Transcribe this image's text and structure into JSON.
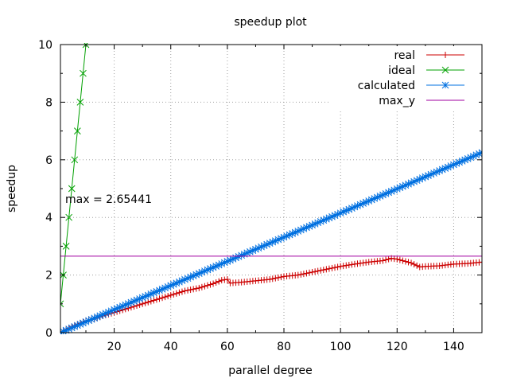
{
  "chart_data": {
    "type": "line",
    "title": "speedup plot",
    "xlabel": "parallel degree",
    "ylabel": "speedup",
    "xlim": [
      1,
      150
    ],
    "ylim": [
      0,
      10
    ],
    "xticks": [
      20,
      40,
      60,
      80,
      100,
      120,
      140
    ],
    "yticks": [
      0,
      2,
      4,
      6,
      8,
      10
    ],
    "grid": true,
    "legend_position": "top-right",
    "annotation": "max = 2.65441",
    "series": [
      {
        "name": "real",
        "color": "#cc0000",
        "marker": "plus",
        "x": [
          1,
          5,
          10,
          15,
          20,
          25,
          30,
          35,
          40,
          45,
          50,
          55,
          58,
          60,
          61,
          65,
          70,
          75,
          80,
          85,
          90,
          95,
          100,
          105,
          110,
          115,
          118,
          120,
          125,
          128,
          130,
          135,
          140,
          145,
          150
        ],
        "y": [
          0.0,
          0.2,
          0.4,
          0.55,
          0.7,
          0.85,
          1.0,
          1.15,
          1.3,
          1.45,
          1.55,
          1.7,
          1.82,
          1.85,
          1.72,
          1.75,
          1.8,
          1.85,
          1.95,
          2.0,
          2.1,
          2.2,
          2.3,
          2.38,
          2.45,
          2.5,
          2.58,
          2.55,
          2.42,
          2.28,
          2.3,
          2.32,
          2.38,
          2.4,
          2.45
        ]
      },
      {
        "name": "ideal",
        "color": "#00a000",
        "marker": "cross",
        "x": [
          1,
          2,
          3,
          4,
          5,
          6,
          7,
          8,
          9,
          10
        ],
        "y": [
          1,
          2,
          3,
          4,
          5,
          6,
          7,
          8,
          9,
          10
        ]
      },
      {
        "name": "calculated",
        "color": "#0070e0",
        "marker": "star",
        "x": [
          1,
          150
        ],
        "y": [
          0.0,
          6.25
        ]
      },
      {
        "name": "max_y",
        "color": "#a000a0",
        "marker": "none",
        "x": [
          1,
          150
        ],
        "y": [
          2.65441,
          2.65441
        ]
      }
    ]
  }
}
